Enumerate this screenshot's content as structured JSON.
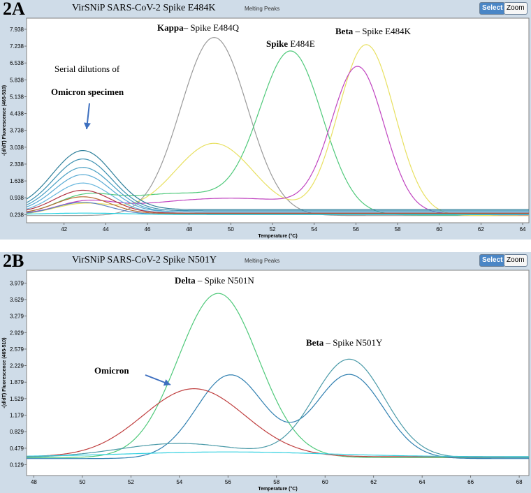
{
  "figure": {
    "panels": [
      {
        "label": "2A",
        "title": "VirSNiP SARS-CoV-2 Spike E484K",
        "subtitle": "Melting Peaks",
        "select_label": "Select",
        "zoom_label": "Zoom"
      },
      {
        "label": "2B",
        "title": "VirSNiP SARS-CoV-2 Spike N501Y",
        "subtitle": "Melting Peaks",
        "select_label": "Select",
        "zoom_label": "Zoom"
      }
    ]
  },
  "chart_data": [
    {
      "type": "line",
      "xlabel": "Temperature (°C)",
      "ylabel": "-(d/dT) Fluorescence (465-510)",
      "xlim": [
        40.2,
        64.3
      ],
      "ylim": [
        -0.1,
        8.4
      ],
      "xticks": [
        42,
        44,
        46,
        48,
        50,
        52,
        54,
        56,
        58,
        60,
        62,
        64
      ],
      "yticks": [
        0.238,
        0.938,
        1.638,
        2.338,
        3.038,
        3.738,
        4.438,
        5.138,
        5.838,
        6.538,
        7.238,
        7.938
      ],
      "ytick_labels": [
        "0.238",
        "0.938",
        "1.638",
        "2.338",
        "3.038",
        "3.738",
        "4.438",
        "5.138",
        "5.838",
        "6.538",
        "7.238",
        "7.938"
      ],
      "grid": false,
      "annotations": [
        {
          "bold": "Kappa",
          "text": "– Spike E484Q"
        },
        {
          "bold": "Spike",
          "text": " E484E"
        },
        {
          "bold": "Beta",
          "text": " – Spike E484K"
        },
        {
          "bold": "",
          "text": "Serial dilutions of"
        },
        {
          "bold": "Omicron specimen",
          "text": ""
        }
      ],
      "series": [
        {
          "color": "#9a9a9a",
          "base": 0.2,
          "peaks": [
            {
              "x": 49.2,
              "h": 7.4,
              "w": 1.6
            }
          ]
        },
        {
          "color": "#4fc97a",
          "base": 0.22,
          "peaks": [
            {
              "x": 42.9,
              "h": 0.55,
              "w": 1.3
            },
            {
              "x": 47.5,
              "h": 0.9,
              "w": 3.2
            },
            {
              "x": 52.9,
              "h": 6.6,
              "w": 1.5
            }
          ]
        },
        {
          "color": "#e8e060",
          "base": 0.2,
          "peaks": [
            {
              "x": 43.0,
              "h": 0.5,
              "w": 1.5
            },
            {
              "x": 49.2,
              "h": 3.0,
              "w": 1.9
            },
            {
              "x": 56.5,
              "h": 7.1,
              "w": 1.35
            }
          ]
        },
        {
          "color": "#c044c0",
          "base": 0.22,
          "peaks": [
            {
              "x": 43.0,
              "h": 0.4,
              "w": 1.3
            },
            {
              "x": 50.0,
              "h": 0.7,
              "w": 4.5
            },
            {
              "x": 56.1,
              "h": 5.9,
              "w": 1.25
            }
          ]
        },
        {
          "color": "#2e7f9a",
          "base": 0.45,
          "peaks": [
            {
              "x": 42.9,
              "h": 2.45,
              "w": 1.45
            }
          ]
        },
        {
          "color": "#3a8fb0",
          "base": 0.4,
          "peaks": [
            {
              "x": 42.9,
              "h": 2.15,
              "w": 1.4
            }
          ]
        },
        {
          "color": "#4aa0c4",
          "base": 0.35,
          "peaks": [
            {
              "x": 42.9,
              "h": 1.85,
              "w": 1.4
            }
          ]
        },
        {
          "color": "#58aad4",
          "base": 0.35,
          "peaks": [
            {
              "x": 42.9,
              "h": 1.55,
              "w": 1.35
            }
          ]
        },
        {
          "color": "#66b6dd",
          "base": 0.3,
          "peaks": [
            {
              "x": 42.9,
              "h": 1.25,
              "w": 1.35
            }
          ]
        },
        {
          "color": "#b03040",
          "base": 0.3,
          "peaks": [
            {
              "x": 42.9,
              "h": 0.95,
              "w": 1.35
            }
          ]
        },
        {
          "color": "#b86a30",
          "base": 0.28,
          "peaks": [
            {
              "x": 42.9,
              "h": 0.7,
              "w": 1.3
            }
          ]
        },
        {
          "color": "#5a80c0",
          "base": 0.25,
          "peaks": [
            {
              "x": 42.9,
              "h": 0.5,
              "w": 1.3
            }
          ]
        },
        {
          "color": "#20d0e0",
          "base": 0.24,
          "peaks": [
            {
              "x": 43.0,
              "h": 0.06,
              "w": 2.0
            }
          ]
        }
      ]
    },
    {
      "type": "line",
      "xlabel": "Temperature (°C)",
      "ylabel": "-(d/dT) Fluorescence (465-510)",
      "xlim": [
        47.7,
        68.4
      ],
      "ylim": [
        -0.1,
        4.25
      ],
      "xticks": [
        48,
        50,
        52,
        54,
        56,
        58,
        60,
        62,
        64,
        66,
        68
      ],
      "yticks": [
        0.129,
        0.479,
        0.829,
        1.179,
        1.529,
        1.879,
        2.229,
        2.579,
        2.929,
        3.279,
        3.629,
        3.979
      ],
      "ytick_labels": [
        "0.129",
        "0.479",
        "0.829",
        "1.179",
        "1.529",
        "1.879",
        "2.229",
        "2.579",
        "2.929",
        "3.279",
        "3.629",
        "3.979"
      ],
      "grid": false,
      "annotations": [
        {
          "bold": "Delta",
          "text": " – Spike N501N"
        },
        {
          "bold": "Beta",
          "text": " – Spike N501Y"
        },
        {
          "bold": "Omicron",
          "text": ""
        }
      ],
      "series": [
        {
          "color": "#4fc97a",
          "base": 0.28,
          "peaks": [
            {
              "x": 55.6,
              "h": 3.48,
              "w": 1.65
            }
          ]
        },
        {
          "color": "#2f7fb0",
          "base": 0.26,
          "peaks": [
            {
              "x": 56.1,
              "h": 1.77,
              "w": 1.4
            },
            {
              "x": 61.0,
              "h": 1.78,
              "w": 1.4
            }
          ]
        },
        {
          "color": "#4a9aa8",
          "base": 0.28,
          "peaks": [
            {
              "x": 54.0,
              "h": 0.3,
              "w": 2.5
            },
            {
              "x": 61.0,
              "h": 2.08,
              "w": 1.45
            }
          ]
        },
        {
          "color": "#c04040",
          "base": 0.3,
          "peaks": [
            {
              "x": 54.6,
              "h": 1.44,
              "w": 2.1
            }
          ]
        },
        {
          "color": "#30d0e0",
          "base": 0.3,
          "peaks": [
            {
              "x": 56.0,
              "h": 0.1,
              "w": 4.0
            }
          ]
        }
      ]
    }
  ]
}
